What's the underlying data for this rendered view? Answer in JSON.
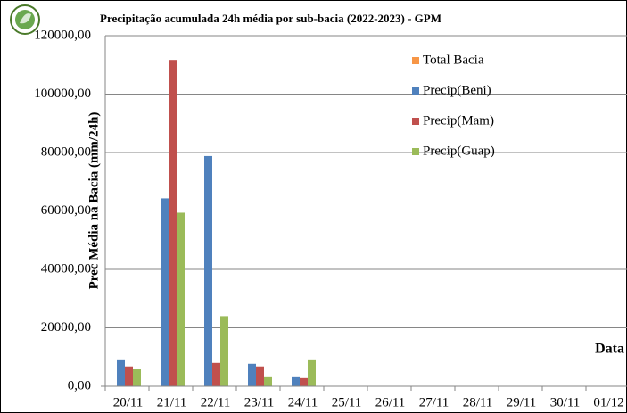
{
  "chart_data": {
    "type": "bar",
    "title": "Precipitação acumulada 24h média por sub-bacia (2022-2023) - GPM",
    "y_label": "Prec  Média na Bacia (mm/24h)",
    "x_label": "Data",
    "categories": [
      "20/11",
      "21/11",
      "22/11",
      "23/11",
      "24/11",
      "25/11",
      "26/11",
      "27/11",
      "28/11",
      "29/11",
      "30/11",
      "01/12"
    ],
    "series": [
      {
        "name": "Total Bacia",
        "color": "#f79646",
        "values": [
          null,
          null,
          null,
          null,
          null,
          null,
          null,
          null,
          null,
          null,
          null,
          null
        ]
      },
      {
        "name": "Precip(Beni)",
        "color": "#4f81bd",
        "values": [
          8900,
          64300,
          78800,
          7700,
          3100,
          null,
          null,
          null,
          null,
          null,
          null,
          null
        ]
      },
      {
        "name": "Precip(Mam)",
        "color": "#c0504d",
        "values": [
          6800,
          111700,
          8000,
          6800,
          2800,
          null,
          null,
          null,
          null,
          null,
          null,
          null
        ]
      },
      {
        "name": "Precip(Guap)",
        "color": "#9bbb59",
        "values": [
          5800,
          59400,
          24000,
          3100,
          8900,
          null,
          null,
          null,
          null,
          null,
          null,
          null
        ]
      }
    ],
    "ylim": [
      0,
      120000
    ],
    "yticks": [
      {
        "value": 0,
        "label": "0,00"
      },
      {
        "value": 20000,
        "label": "20000,00"
      },
      {
        "value": 40000,
        "label": "40000,00"
      },
      {
        "value": 60000,
        "label": "60000,00"
      },
      {
        "value": 80000,
        "label": "80000,00"
      },
      {
        "value": 100000,
        "label": "100000,00"
      },
      {
        "value": 120000,
        "label": "120000,00"
      }
    ],
    "grid": true,
    "legend": "top-right"
  }
}
